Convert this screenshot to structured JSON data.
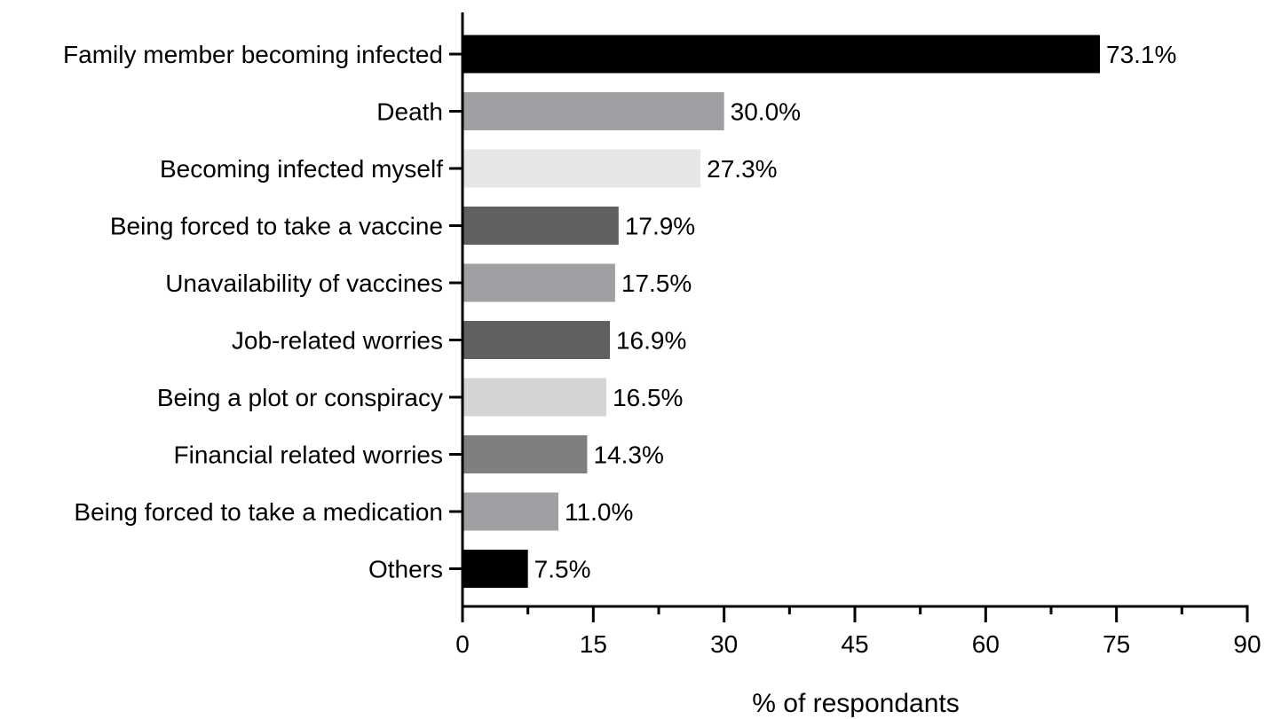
{
  "chart_data": {
    "type": "bar",
    "orientation": "horizontal",
    "categories": [
      "Family member becoming infected",
      "Death",
      "Becoming infected myself",
      "Being forced to take a vaccine",
      "Unavailability of vaccines",
      "Job-related worries",
      "Being a plot or conspiracy",
      "Financial related worries",
      "Being forced to take a medication",
      "Others"
    ],
    "values": [
      73.1,
      30.0,
      27.3,
      17.9,
      17.5,
      16.9,
      16.5,
      14.3,
      11.0,
      7.5
    ],
    "value_labels": [
      "73.1%",
      "30.0%",
      "27.3%",
      "17.9%",
      "17.5%",
      "16.9%",
      "16.5%",
      "14.3%",
      "11.0%",
      "7.5%"
    ],
    "bar_colors": [
      "#000000",
      "#a0a0a4",
      "#e6e6e6",
      "#606060",
      "#a0a0a4",
      "#606060",
      "#d4d4d4",
      "#7f7f7f",
      "#a0a0a4",
      "#000000"
    ],
    "xlabel": "% of respondants",
    "ylabel": "",
    "title": "",
    "xlim": [
      0,
      90
    ],
    "x_ticks": [
      0,
      15,
      30,
      45,
      60,
      75,
      90
    ],
    "x_minor_step": 7.5,
    "grid": false,
    "legend": "none"
  }
}
